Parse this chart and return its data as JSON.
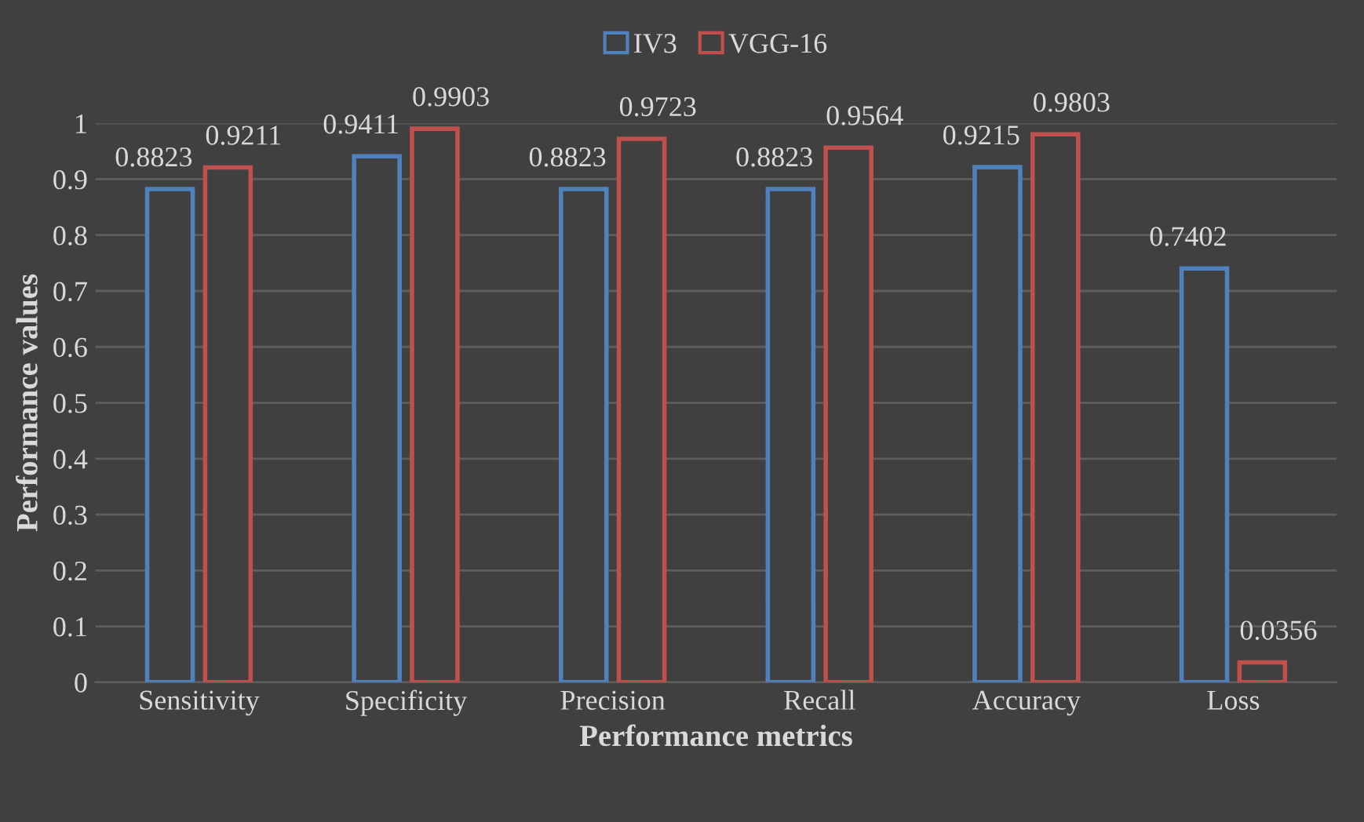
{
  "chart_data": {
    "type": "bar",
    "xlabel": "Performance metrics",
    "ylabel": "Performance values",
    "categories": [
      "Sensitivity",
      "Specificity",
      "Precision",
      "Recall",
      "Accuracy",
      "Loss"
    ],
    "series": [
      {
        "name": "IV3",
        "color": "#4f81bd",
        "values": [
          0.8823,
          0.9411,
          0.8823,
          0.8823,
          0.9215,
          0.7402
        ]
      },
      {
        "name": "VGG-16",
        "color": "#c0504d",
        "values": [
          0.9211,
          0.9903,
          0.9723,
          0.9564,
          0.9803,
          0.0356
        ]
      }
    ],
    "ylim": [
      0,
      1
    ],
    "yticks": [
      0,
      0.1,
      0.2,
      0.3,
      0.4,
      0.5,
      0.6,
      0.7,
      0.8,
      0.9,
      1
    ],
    "grid": "y",
    "legend": "top",
    "data_labels": true
  }
}
